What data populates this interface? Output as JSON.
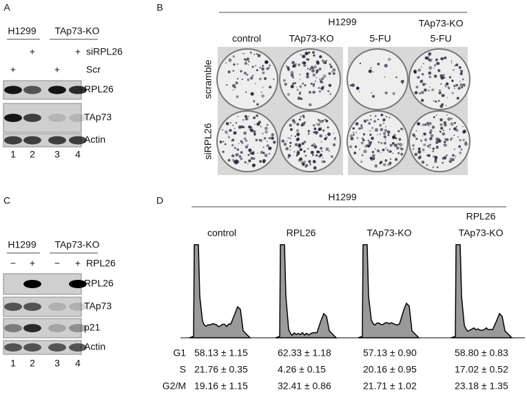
{
  "panel_a": {
    "label": "A",
    "groups": [
      "H1299",
      "TAp73-KO"
    ],
    "treatments": [
      {
        "label": "siRPL26",
        "marks": [
          "+",
          "+"
        ]
      },
      {
        "label": "Scr",
        "marks": [
          "+",
          "+"
        ]
      }
    ],
    "blots": [
      "RPL26",
      "TAp73",
      "Actin"
    ],
    "lanes": [
      1,
      2,
      3,
      4
    ]
  },
  "panel_b": {
    "label": "B",
    "header": "H1299",
    "columns": [
      [
        "control"
      ],
      [
        "TAp73-KO"
      ],
      [
        "5-FU"
      ],
      [
        "TAp73-KO",
        "5-FU"
      ]
    ],
    "rows": [
      "scramble",
      "siRPL26"
    ]
  },
  "panel_c": {
    "label": "C",
    "groups": [
      "H1299",
      "TAp73-KO"
    ],
    "signs_label": "RPL26",
    "signs": [
      "−",
      "+",
      "−",
      "+"
    ],
    "blots": [
      "RPL26",
      "TAp73",
      "p21",
      "Actin"
    ],
    "lanes": [
      1,
      2,
      3,
      4
    ]
  },
  "panel_d": {
    "label": "D",
    "header": "H1299",
    "columns": [
      [
        "control"
      ],
      [
        "RPL26"
      ],
      [
        "TAp73-KO"
      ],
      [
        "RPL26",
        "TAp73-KO"
      ]
    ],
    "table": [
      {
        "phase": "G1",
        "values": [
          "58.13 ± 1.15",
          "62.33 ± 1.18",
          "57.13 ± 0.90",
          "58.80 ± 0.83"
        ]
      },
      {
        "phase": "S",
        "values": [
          "21.76 ± 0.35",
          "4.26  ± 0.15",
          "20.16 ± 0.95",
          "17.02 ± 0.52"
        ]
      },
      {
        "phase": "G2/M",
        "values": [
          "19.16 ± 1.15",
          "32.41 ± 0.86",
          "21.71 ± 1.02",
          "23.18 ± 1.35"
        ]
      }
    ]
  }
}
